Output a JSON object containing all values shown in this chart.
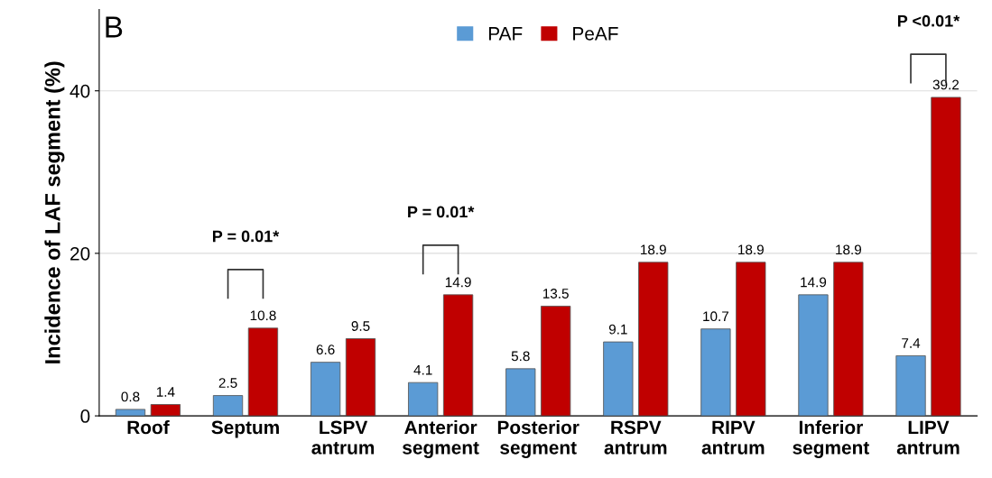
{
  "chart_data": {
    "type": "bar",
    "ylabel": "Incidence of LAF segment (%)",
    "categories": [
      "Roof",
      "Septum",
      "LSPV\nantrum",
      "Anterior\nsegment",
      "Posterior\nsegment",
      "RSPV\nantrum",
      "RIPV\nantrum",
      "Inferior\nsegment",
      "LIPV\nantrum"
    ],
    "series": [
      {
        "name": "PAF",
        "color": "#5b9bd5",
        "values": [
          0.8,
          2.5,
          6.6,
          4.1,
          5.8,
          9.1,
          10.7,
          14.9,
          7.4
        ]
      },
      {
        "name": "PeAF",
        "color": "#c00000",
        "values": [
          1.4,
          10.8,
          9.5,
          14.9,
          13.5,
          18.9,
          18.9,
          18.9,
          39.2
        ]
      }
    ],
    "ylim": [
      0,
      50
    ],
    "yticks": [
      0,
      20,
      40
    ],
    "grid": "y",
    "legend": "top",
    "data_labels": true,
    "annotations": [
      "B",
      "P = 0.01*",
      "P = 0.01*",
      "P <0.01*"
    ]
  }
}
